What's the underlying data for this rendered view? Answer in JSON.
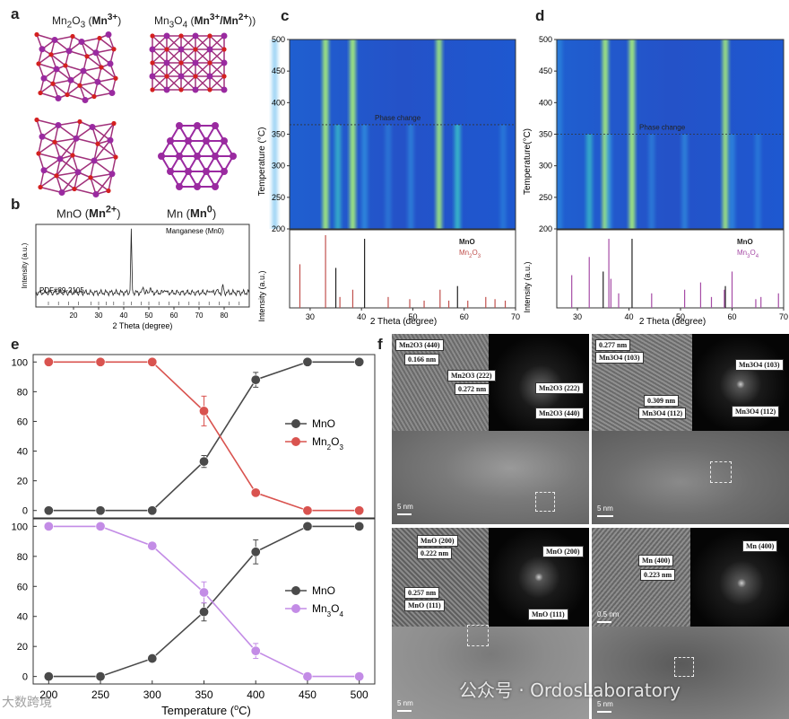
{
  "panel_letters": {
    "a": "a",
    "b": "b",
    "c": "c",
    "d": "d",
    "e": "e",
    "f": "f"
  },
  "panel_a": {
    "labels": {
      "mn2o3": "Mn2O3 (Mn3+)",
      "mn3o4": "Mn3O4 (Mn3+/Mn2+))",
      "mno": "MnO (Mn2+)",
      "mn": "Mn (Mn0)"
    },
    "colors": {
      "oxygen": "#d42020",
      "manganese": "#9a2aa0"
    }
  },
  "panel_b": {
    "annotation": "Manganese (Mn0)",
    "pdf_label": "PDF#89-2105",
    "xlabel": "2 Theta (degree)",
    "ylabel": "Intensity (a.u.)",
    "xticks": [
      "20",
      "30",
      "40",
      "50",
      "60",
      "70",
      "80"
    ]
  },
  "panel_c": {
    "phase_change": "Phase change",
    "heatmap_ylabel": "Temperature (°C)",
    "heatmap_yticks": [
      "500",
      "450",
      "400",
      "350",
      "300",
      "250",
      "200"
    ],
    "legend": [
      "MnO",
      "Mn2O3"
    ],
    "xlabel": "2 Theta (degree)",
    "ylabel": "Intensity (a.u.)",
    "xticks": [
      "30",
      "40",
      "50",
      "60",
      "70"
    ]
  },
  "panel_d": {
    "phase_change": "Phase change",
    "heatmap_ylabel": "Temperature(°C)",
    "heatmap_yticks": [
      "500",
      "450",
      "400",
      "350",
      "300",
      "250",
      "200"
    ],
    "legend": [
      "MnO",
      "Mn3O4"
    ],
    "xlabel": "2 Theta (degree)",
    "ylabel": "Intensity (a.u.)",
    "xticks": [
      "30",
      "40",
      "50",
      "60",
      "70"
    ]
  },
  "panel_e": {
    "xlabel": "Temperature (°C)",
    "xticks": [
      "200",
      "250",
      "300",
      "350",
      "400",
      "450",
      "500"
    ],
    "yticks": [
      "0",
      "20",
      "40",
      "60",
      "80",
      "100"
    ]
  },
  "panel_f": {
    "q1": {
      "lattice1": "Mn2O3 (440)",
      "dist1": "0.166 nm",
      "lattice2": "Mn2O3 (222)",
      "dist2": "0.272 nm",
      "fft1": "Mn2O3 (222)",
      "fft2": "Mn2O3 (440)",
      "scale": "5 nm"
    },
    "q2": {
      "dist1": "0.277 nm",
      "lattice1": "Mn3O4 (103)",
      "dist2": "0.309 nm",
      "lattice2": "Mn3O4 (112)",
      "fft1": "Mn3O4 (103)",
      "fft2": "Mn3O4 (112)",
      "scale": "5 nm"
    },
    "q3": {
      "lattice1": "MnO (200)",
      "dist1": "0.222 nm",
      "dist2": "0.257 nm",
      "lattice2": "MnO (111)",
      "fft1": "MnO (200)",
      "fft2": "MnO (111)",
      "scale": "5 nm"
    },
    "q4": {
      "lattice1": "Mn (400)",
      "dist1": "0.223 nm",
      "fft1": "Mn (400)",
      "scale1": "0.5 nm",
      "scale2": "5 nm"
    }
  },
  "watermarks": {
    "left": "大数跨境",
    "right": "公众号 · OrdosLaboratory"
  },
  "chart_data": [
    {
      "id": "b",
      "type": "line",
      "xlim": [
        5,
        90
      ],
      "peaks_x": [
        43.0,
        47.8,
        50.5,
        56.3,
        74.5,
        77.0,
        79.5
      ],
      "peaks_h": [
        1.0,
        0.12,
        0.1,
        0.08,
        0.06,
        0.06,
        0.12
      ],
      "reference_ticks_x": [
        10,
        14,
        18,
        22,
        27,
        30,
        33,
        36,
        40,
        43,
        47,
        50,
        54,
        58,
        62,
        66,
        70,
        74,
        78,
        82,
        86
      ],
      "annotation": "Manganese (Mn0)",
      "reference": "PDF#89-2105",
      "xlabel": "2 Theta (degree)",
      "ylabel": "Intensity (a.u.)"
    },
    {
      "id": "c",
      "type": "heatmap",
      "xlim": [
        26,
        70
      ],
      "ylim": [
        200,
        500
      ],
      "phase_change_temperature": 365,
      "heat_lines": [
        {
          "x": 33.0,
          "from": 200,
          "to": 500,
          "i": 0.9
        },
        {
          "x": 38.3,
          "from": 200,
          "to": 500,
          "i": 0.95
        },
        {
          "x": 55.1,
          "from": 200,
          "to": 500,
          "i": 0.85
        },
        {
          "x": 23.1,
          "from": 200,
          "to": 500,
          "i": 0.4
        },
        {
          "x": 35.4,
          "from": 200,
          "to": 365,
          "i": 0.6
        },
        {
          "x": 40.6,
          "from": 200,
          "to": 365,
          "i": 0.5
        },
        {
          "x": 49.6,
          "from": 200,
          "to": 365,
          "i": 0.4
        },
        {
          "x": 58.7,
          "from": 200,
          "to": 365,
          "i": 0.7
        },
        {
          "x": 67.6,
          "from": 200,
          "to": 365,
          "i": 0.3
        },
        {
          "x": 45.2,
          "from": 200,
          "to": 365,
          "i": 0.3
        }
      ],
      "reference": {
        "MnO": {
          "color": "#222222",
          "x": [
            35.0,
            40.6,
            58.7
          ],
          "h": [
            0.55,
            0.95,
            0.3
          ]
        },
        "Mn2O3": {
          "color": "#c0504d",
          "x": [
            28.0,
            33.0,
            35.8,
            38.3,
            45.2,
            49.4,
            52.2,
            55.3,
            57.0,
            60.7,
            64.2,
            66.0,
            68.0
          ],
          "h": [
            0.6,
            1.0,
            0.15,
            0.25,
            0.15,
            0.12,
            0.1,
            0.25,
            0.1,
            0.1,
            0.15,
            0.12,
            0.1
          ]
        }
      },
      "xlabel": "2 Theta (degree)"
    },
    {
      "id": "d",
      "type": "heatmap",
      "xlim": [
        26,
        70
      ],
      "ylim": [
        200,
        500
      ],
      "phase_change_temperature": 350,
      "heat_lines": [
        {
          "x": 35.4,
          "from": 200,
          "to": 500,
          "i": 0.95
        },
        {
          "x": 40.6,
          "from": 200,
          "to": 500,
          "i": 0.9
        },
        {
          "x": 58.7,
          "from": 200,
          "to": 500,
          "i": 0.85
        },
        {
          "x": 26.5,
          "from": 200,
          "to": 500,
          "i": 0.35
        },
        {
          "x": 32.3,
          "from": 200,
          "to": 350,
          "i": 0.6
        },
        {
          "x": 36.1,
          "from": 200,
          "to": 350,
          "i": 0.5
        },
        {
          "x": 44.4,
          "from": 200,
          "to": 350,
          "i": 0.35
        },
        {
          "x": 50.8,
          "from": 200,
          "to": 350,
          "i": 0.45
        },
        {
          "x": 60.0,
          "from": 200,
          "to": 350,
          "i": 0.45
        },
        {
          "x": 65.0,
          "from": 200,
          "to": 350,
          "i": 0.3
        }
      ],
      "reference": {
        "MnO": {
          "color": "#222222",
          "x": [
            35.0,
            40.6,
            58.7
          ],
          "h": [
            0.5,
            0.95,
            0.3
          ]
        },
        "Mn3O4": {
          "color": "#a64ca6",
          "x": [
            28.9,
            32.3,
            36.1,
            36.5,
            38.0,
            44.4,
            50.8,
            53.9,
            56.0,
            58.5,
            60.0,
            64.6,
            65.6,
            69.0
          ],
          "h": [
            0.45,
            0.7,
            0.95,
            0.4,
            0.2,
            0.2,
            0.25,
            0.35,
            0.15,
            0.25,
            0.5,
            0.12,
            0.15,
            0.2
          ]
        }
      },
      "xlabel": "2 Theta (degree)"
    },
    {
      "id": "e-top",
      "type": "line",
      "xlim": [
        185,
        515
      ],
      "ylim": [
        -5,
        105
      ],
      "x": [
        200,
        250,
        300,
        350,
        400,
        450,
        500
      ],
      "series": [
        {
          "name": "MnO",
          "color": "#4a4a4a",
          "values": [
            0,
            0,
            0,
            33,
            88,
            100,
            100
          ],
          "err": [
            0,
            0,
            0,
            4,
            5,
            0,
            0
          ]
        },
        {
          "name": "Mn2O3",
          "color": "#d9534f",
          "values": [
            100,
            100,
            100,
            67,
            12,
            0,
            0
          ],
          "err": [
            0,
            0,
            0,
            10,
            2,
            0,
            0
          ]
        }
      ]
    },
    {
      "id": "e-bottom",
      "type": "line",
      "xlim": [
        185,
        515
      ],
      "ylim": [
        -5,
        105
      ],
      "x": [
        200,
        250,
        300,
        350,
        400,
        450,
        500
      ],
      "series": [
        {
          "name": "MnO",
          "color": "#4a4a4a",
          "values": [
            0,
            0,
            12,
            43,
            83,
            100,
            100
          ],
          "err": [
            0,
            0,
            0,
            6,
            8,
            0,
            0
          ]
        },
        {
          "name": "Mn3O4",
          "color": "#c38ce6",
          "values": [
            100,
            100,
            87,
            56,
            17,
            0,
            0
          ],
          "err": [
            0,
            0,
            0,
            7,
            5,
            0,
            0
          ]
        }
      ]
    }
  ]
}
